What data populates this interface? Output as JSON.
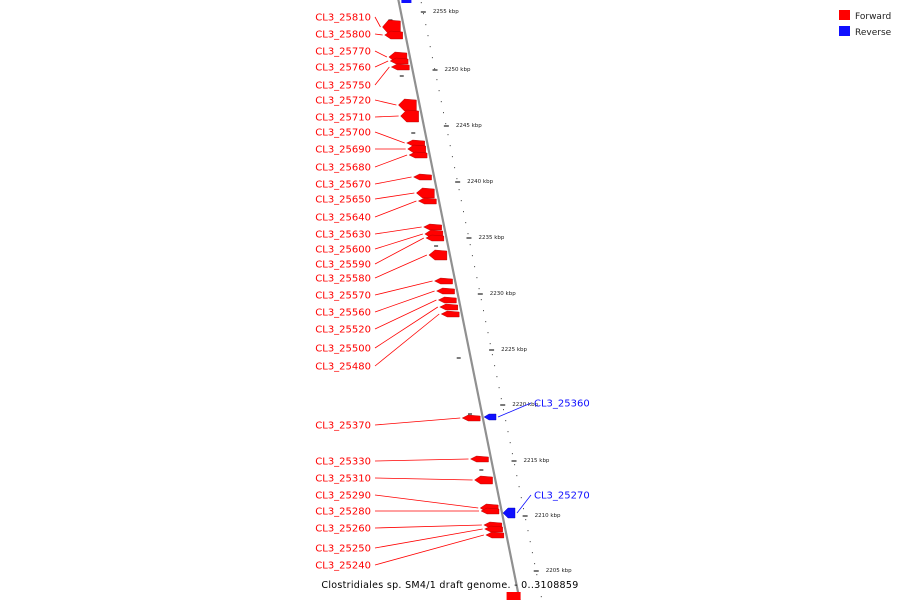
{
  "colors": {
    "forward": "#ff0000",
    "reverse": "#1010ff",
    "backbone": "#909090",
    "tick": "#222222"
  },
  "legend": [
    {
      "label": "Forward",
      "color": "#ff0000"
    },
    {
      "label": "Reverse",
      "color": "#1010ff"
    }
  ],
  "caption": "Clostridiales sp. SM4/1 draft genome. - 0..3108859",
  "ticks": [
    "2255 kbp",
    "2250 kbp",
    "2245 kbp",
    "2240 kbp",
    "2235 kbp",
    "2230 kbp",
    "2225 kbp",
    "2220 kbp",
    "2215 kbp",
    "2210 kbp",
    "2205 kbp"
  ],
  "forward_labels": [
    "CL3_25810",
    "CL3_25800",
    "CL3_25770",
    "CL3_25760",
    "CL3_25750",
    "CL3_25720",
    "CL3_25710",
    "CL3_25700",
    "CL3_25690",
    "CL3_25680",
    "CL3_25670",
    "CL3_25650",
    "CL3_25640",
    "CL3_25630",
    "CL3_25600",
    "CL3_25590",
    "CL3_25580",
    "CL3_25570",
    "CL3_25560",
    "CL3_25520",
    "CL3_25500",
    "CL3_25480",
    "CL3_25370",
    "CL3_25330",
    "CL3_25310",
    "CL3_25290",
    "CL3_25280",
    "CL3_25260",
    "CL3_25250",
    "CL3_25240"
  ],
  "reverse_labels": [
    "CL3_25360",
    "CL3_25270"
  ]
}
